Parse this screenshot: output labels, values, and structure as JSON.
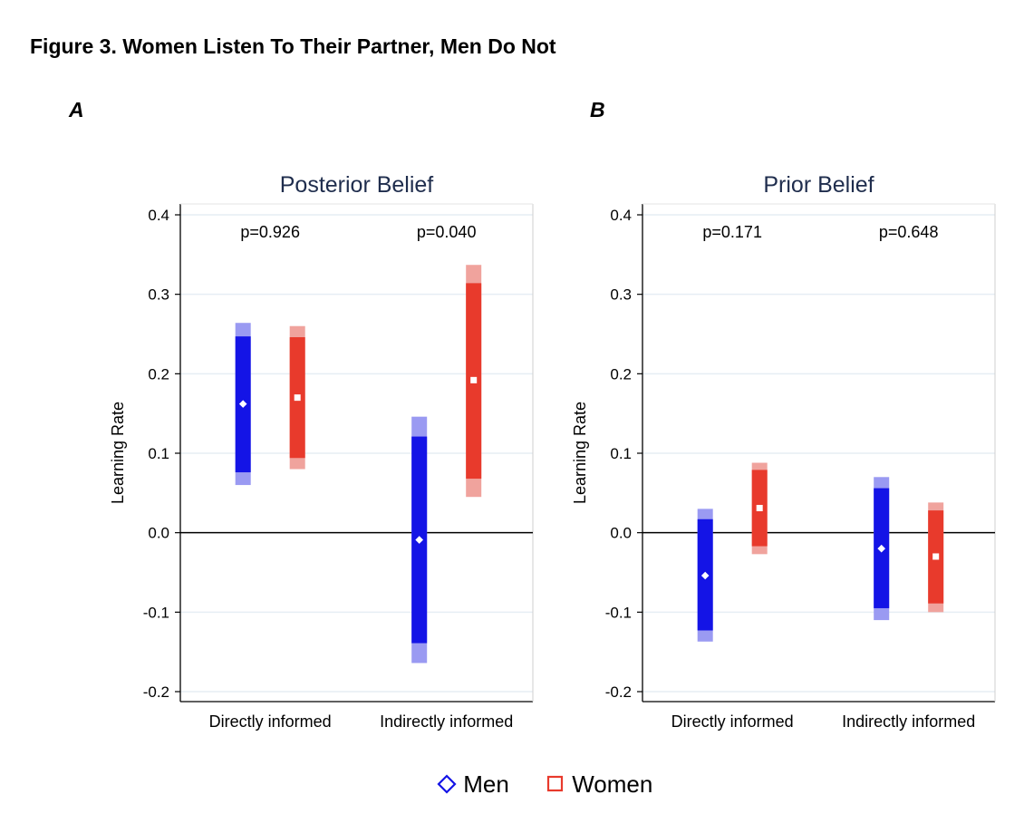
{
  "figure": {
    "title": "Figure 3. Women Listen To Their Partner, Men Do Not",
    "panel_a_letter": "A",
    "panel_b_letter": "B"
  },
  "legend": {
    "men": "Men",
    "women": "Women"
  },
  "colors": {
    "men": "#1414e6",
    "men_light": "#9a9af2",
    "women": "#e83a2c",
    "women_light": "#f0a39d",
    "title": "#1f2d4d",
    "grid": "#e6eef4"
  },
  "chart_data": [
    {
      "type": "bar",
      "title": "Posterior Belief",
      "ylabel": "Learning Rate",
      "xlabel": "",
      "ylim": [
        -0.2,
        0.4
      ],
      "yticks": [
        -0.2,
        -0.1,
        0.0,
        0.1,
        0.2,
        0.3,
        0.4
      ],
      "ytick_labels": [
        "-0.2",
        "-0.1",
        "0.0",
        "0.1",
        "0.2",
        "0.3",
        "0.4"
      ],
      "grid": true,
      "categories": [
        "Directly informed",
        "Indirectly informed"
      ],
      "annotations": [
        "p=0.926",
        "p=0.040"
      ],
      "series": [
        {
          "name": "Men",
          "point": [
            0.162,
            -0.009
          ],
          "ci_inner": [
            [
              0.076,
              0.247
            ],
            [
              -0.139,
              0.121
            ]
          ],
          "ci_outer": [
            [
              0.06,
              0.264
            ],
            [
              -0.164,
              0.146
            ]
          ]
        },
        {
          "name": "Women",
          "point": [
            0.17,
            0.192
          ],
          "ci_inner": [
            [
              0.094,
              0.246
            ],
            [
              0.068,
              0.314
            ]
          ],
          "ci_outer": [
            [
              0.08,
              0.26
            ],
            [
              0.045,
              0.337
            ]
          ]
        }
      ]
    },
    {
      "type": "bar",
      "title": "Prior Belief",
      "ylabel": "Learning Rate",
      "xlabel": "",
      "ylim": [
        -0.2,
        0.4
      ],
      "yticks": [
        -0.2,
        -0.1,
        0.0,
        0.1,
        0.2,
        0.3,
        0.4
      ],
      "ytick_labels": [
        "-0.2",
        "-0.1",
        "0.0",
        "0.1",
        "0.2",
        "0.3",
        "0.4"
      ],
      "grid": true,
      "categories": [
        "Directly informed",
        "Indirectly informed"
      ],
      "annotations": [
        "p=0.171",
        "p=0.648"
      ],
      "series": [
        {
          "name": "Men",
          "point": [
            -0.054,
            -0.02
          ],
          "ci_inner": [
            [
              -0.123,
              0.017
            ],
            [
              -0.095,
              0.056
            ]
          ],
          "ci_outer": [
            [
              -0.137,
              0.03
            ],
            [
              -0.11,
              0.07
            ]
          ]
        },
        {
          "name": "Women",
          "point": [
            0.031,
            -0.03
          ],
          "ci_inner": [
            [
              -0.017,
              0.079
            ],
            [
              -0.089,
              0.028
            ]
          ],
          "ci_outer": [
            [
              -0.027,
              0.088
            ],
            [
              -0.1,
              0.038
            ]
          ]
        }
      ]
    }
  ]
}
